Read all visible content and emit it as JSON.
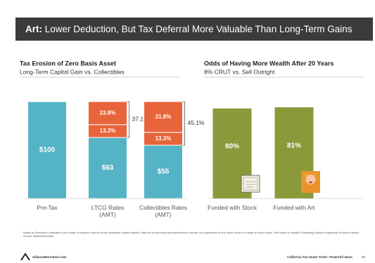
{
  "slide": {
    "title_lead": "Art:",
    "title": "Lower Deduction, But Tax Deferral More Valuable Than Long-Term Gains",
    "footnote": "Based on Bernstein's estimates of the range of long-term returns for the applicable capital markets. Data do not represent past performance and are not a guarantee of any future result or a range of future results. See Notes on Wealth Forecasting System in Appendix for further details.\nSource: AllianceBernstein",
    "logo": "AB",
    "footer_left": "AllianceBernstein.com",
    "footer_right": "California Tax-Smart Tools—Powerful Ideas",
    "page": "32"
  },
  "chart_data": [
    {
      "type": "stacked_bar",
      "title": "Tax Erosion of Zero Basis Asset",
      "subtitle": "Long-Term Capital Gain vs. Collectibles",
      "categories": [
        "Pre-Tax",
        "LTCG Rates\n(AMT)",
        "Collectibles Rates\n(AMT)"
      ],
      "series": [
        {
          "color": "#55b3c6",
          "values": [
            100,
            63,
            55
          ],
          "value_labels": [
            "$100",
            "$63",
            "$55"
          ]
        },
        {
          "color": "#e8643a",
          "values": [
            null,
            13.3,
            13.3
          ],
          "value_labels": [
            null,
            "13.3%",
            "13.3%"
          ]
        },
        {
          "color": "#e8643a",
          "values": [
            null,
            23.8,
            31.8
          ],
          "value_labels": [
            null,
            "23.8%",
            "31.8%"
          ]
        }
      ],
      "brackets": [
        null,
        {
          "value": 37.1,
          "label": "37.1%"
        },
        {
          "value": 45.1,
          "label": "45.1%"
        }
      ],
      "ylim": [
        0,
        100
      ]
    },
    {
      "type": "bar",
      "title": "Odds of Having More Wealth After 20 Years",
      "subtitle": "8% CRUT vs. Sell Outright",
      "categories": [
        "Funded with Stock",
        "Funded with Art"
      ],
      "values": [
        80,
        81
      ],
      "value_labels": [
        "80%",
        "81%"
      ],
      "color": "#8a9a3a",
      "ylim": [
        0,
        86
      ]
    }
  ]
}
